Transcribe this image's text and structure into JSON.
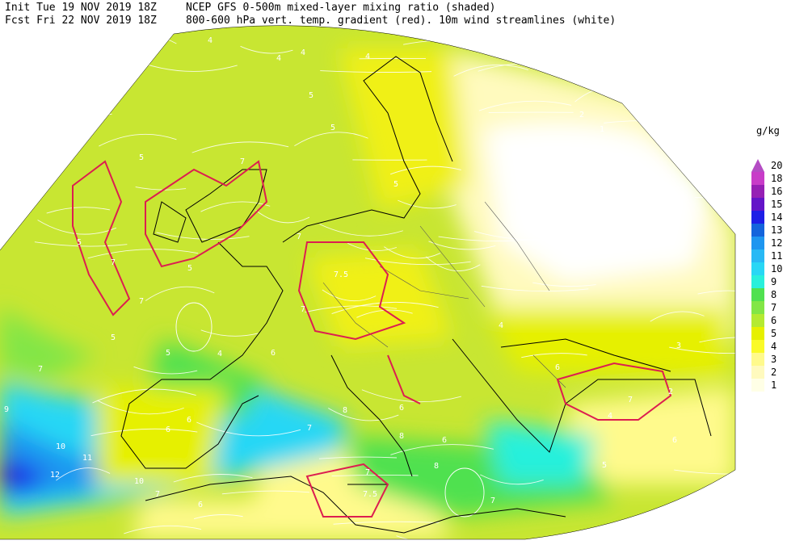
{
  "header": {
    "init": "Init  Tue 19 NOV 2019 18Z",
    "fcst": "Fcst Fri 22 NOV 2019 18Z",
    "line1": "NCEP GFS 0-500m mixed-layer mixing ratio (shaded)",
    "line2": "800-600 hPa vert. temp. gradient (red). 10m wind streamlines (white)"
  },
  "legend": {
    "unit": "g/kg",
    "levels": [
      {
        "label": "20",
        "color": "#b44cc4"
      },
      {
        "label": "18",
        "color": "#c83cc8"
      },
      {
        "label": "16",
        "color": "#9620b4"
      },
      {
        "label": "15",
        "color": "#6414c8"
      },
      {
        "label": "14",
        "color": "#1e1ee6"
      },
      {
        "label": "13",
        "color": "#1464dc"
      },
      {
        "label": "12",
        "color": "#1e96f0"
      },
      {
        "label": "11",
        "color": "#28b9f5"
      },
      {
        "label": "10",
        "color": "#28d7f5"
      },
      {
        "label": "9",
        "color": "#28f0dc"
      },
      {
        "label": "8",
        "color": "#50e150"
      },
      {
        "label": "7",
        "color": "#82e646"
      },
      {
        "label": "6",
        "color": "#b4ea32"
      },
      {
        "label": "5",
        "color": "#e6f000"
      },
      {
        "label": "4",
        "color": "#fafa28"
      },
      {
        "label": "3",
        "color": "#fffa8c"
      },
      {
        "label": "2",
        "color": "#fffabe"
      },
      {
        "label": "1",
        "color": "#ffffe6"
      }
    ]
  },
  "map": {
    "contour_labels": [
      "4",
      "4",
      "4",
      "5",
      "5",
      "5",
      "4",
      "2",
      "1",
      "5",
      "5",
      "5",
      "7",
      "7",
      "7",
      "7",
      "7.5",
      "7",
      "5",
      "6",
      "5",
      "4",
      "6",
      "6",
      "7",
      "8",
      "8",
      "8",
      "6",
      "6",
      "7",
      "9",
      "10",
      "11",
      "12",
      "10",
      "7",
      "6",
      "7",
      "7.5",
      "7",
      "6",
      "4",
      "4",
      "7",
      "6",
      "5",
      "3",
      "2"
    ]
  }
}
